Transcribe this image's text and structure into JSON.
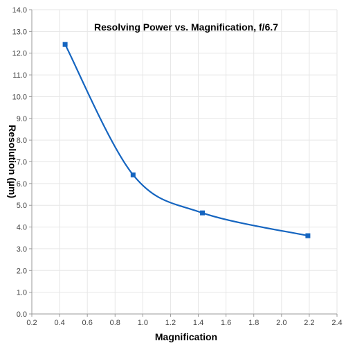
{
  "chart_data": {
    "type": "line",
    "title": "Resolving Power vs. Magnification, f/6.7",
    "xlabel": "Magnification",
    "ylabel": "Resolution (µm)",
    "xlim": [
      0.2,
      2.4
    ],
    "ylim": [
      0.0,
      14.0
    ],
    "x_ticks": [
      "0.2",
      "0.4",
      "0.6",
      "0.8",
      "1.0",
      "1.2",
      "1.4",
      "1.6",
      "1.8",
      "2.0",
      "2.2",
      "2.4"
    ],
    "y_ticks": [
      "0.0",
      "1.0",
      "2.0",
      "3.0",
      "4.0",
      "5.0",
      "6.0",
      "7.0",
      "8.0",
      "9.0",
      "10.0",
      "11.0",
      "12.0",
      "13.0",
      "14.0"
    ],
    "grid": true,
    "legend": "none",
    "smooth": true,
    "colors": {
      "series": "#1565c0",
      "grid": "#e6e6e6",
      "axis": "#999999"
    },
    "series": [
      {
        "x": [
          0.44,
          0.93,
          1.43,
          2.19
        ],
        "y": [
          12.4,
          6.4,
          4.65,
          3.6
        ]
      }
    ]
  }
}
